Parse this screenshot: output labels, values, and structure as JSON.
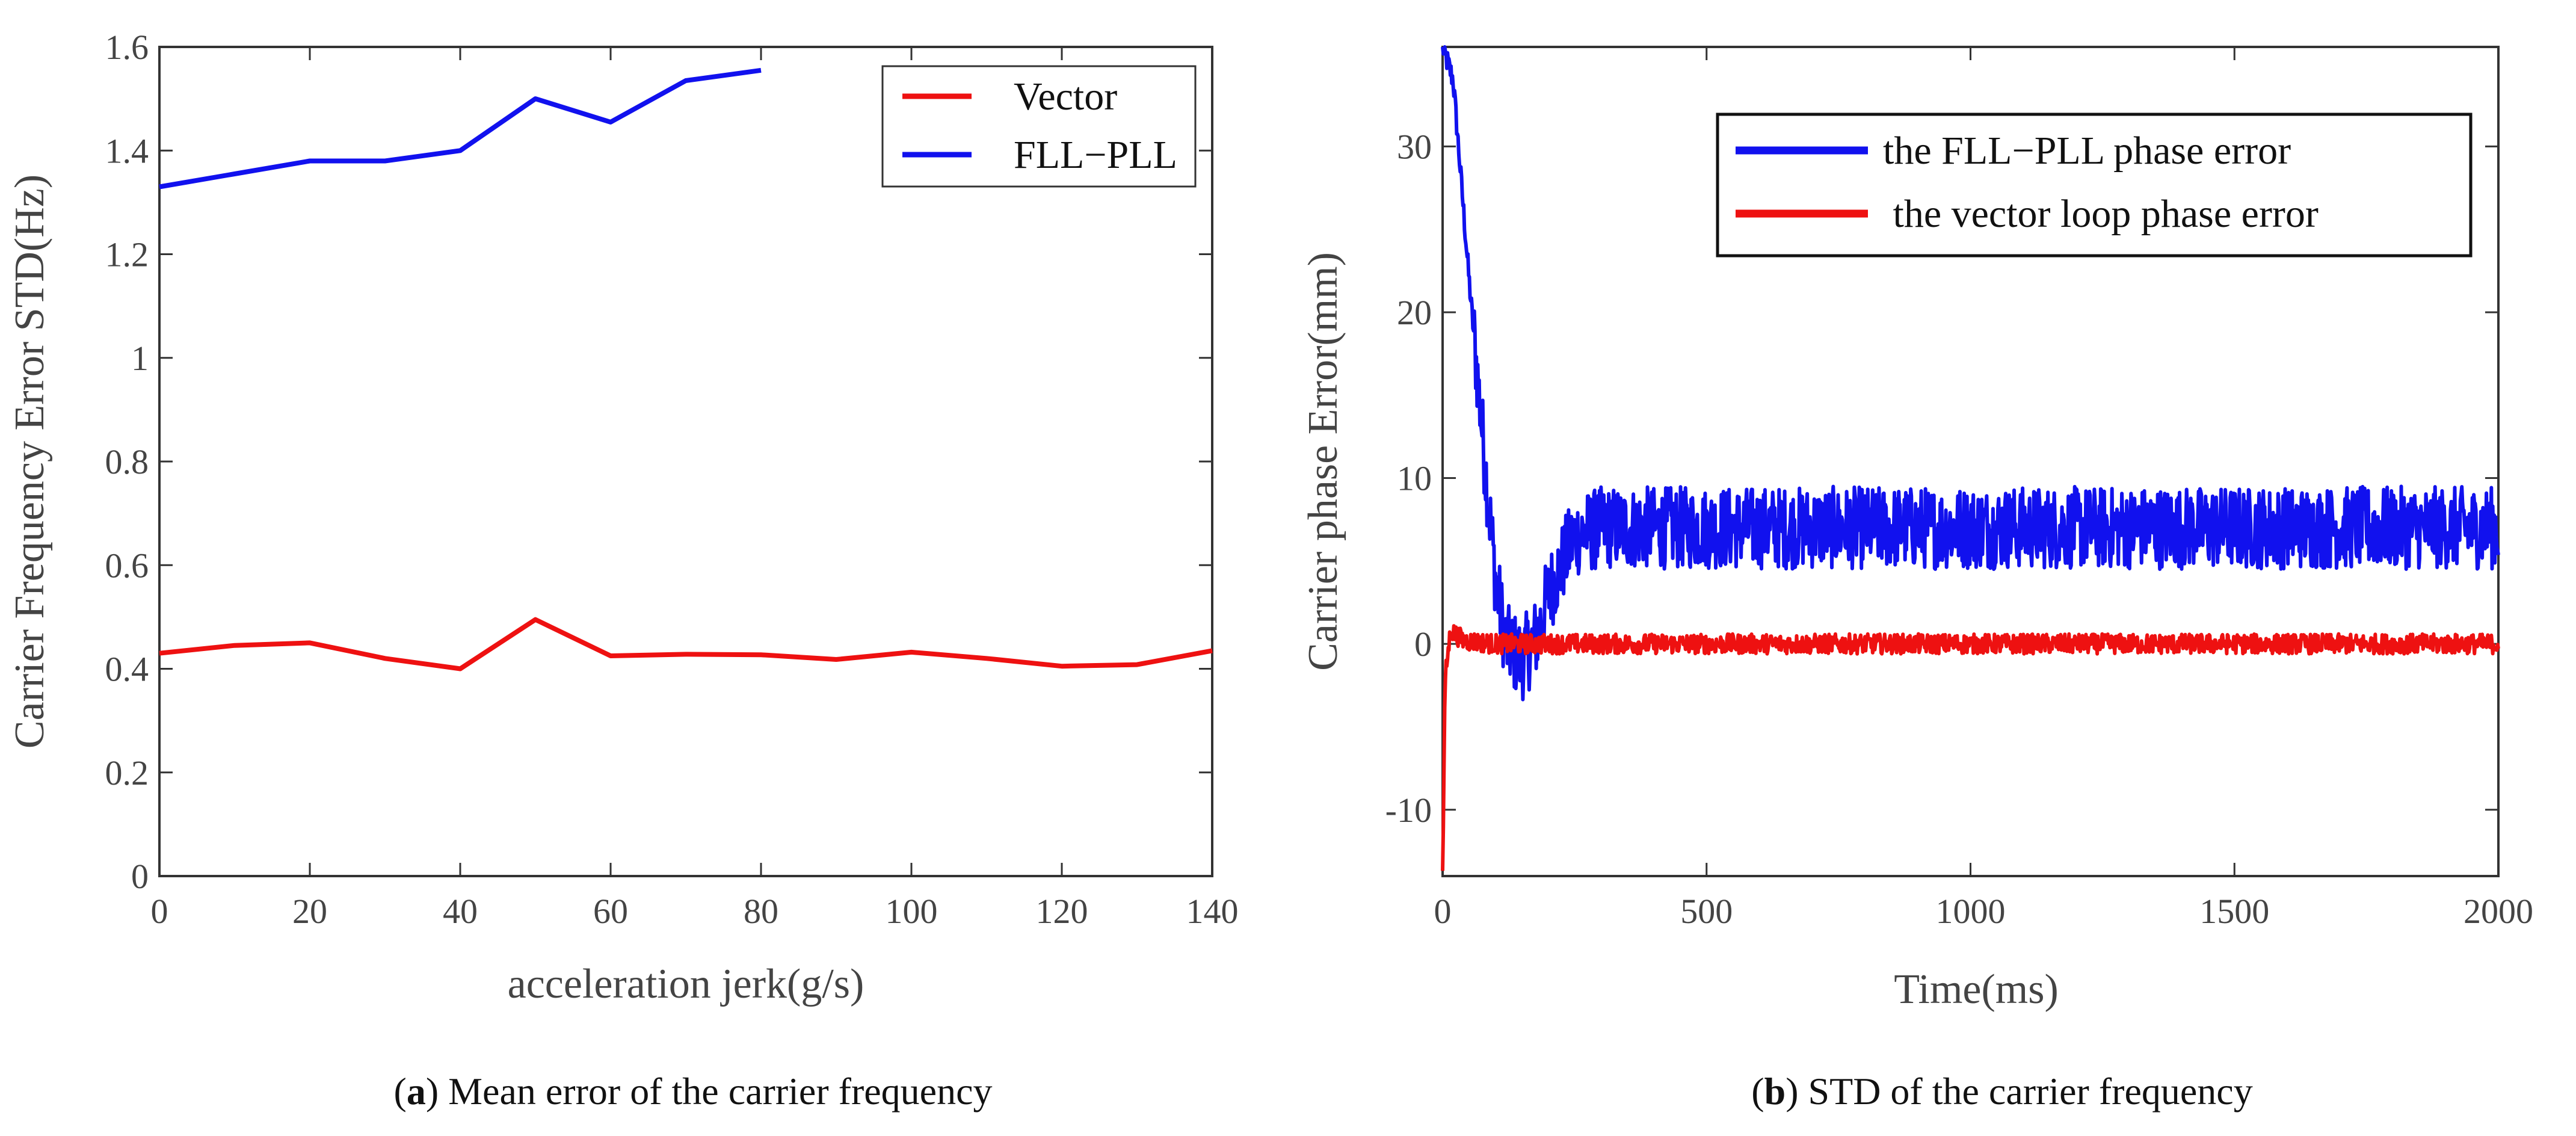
{
  "chart_data": [
    {
      "type": "line",
      "title": "",
      "xlabel": "acceleration jerk(g/s)",
      "ylabel": "Carrier Frequency Error STD(Hz)",
      "xlim": [
        0,
        140
      ],
      "ylim": [
        0,
        1.6
      ],
      "xticks": [
        "0",
        "20",
        "40",
        "60",
        "80",
        "100",
        "120",
        "140"
      ],
      "yticks": [
        "0",
        "0.2",
        "0.4",
        "0.6",
        "0.8",
        "1",
        "1.2",
        "1.4",
        "1.6"
      ],
      "legend_position": "top-right",
      "series": [
        {
          "name": "Vector",
          "color": "#ee1111",
          "x": [
            0,
            10,
            20,
            30,
            40,
            50,
            60,
            70,
            80,
            90,
            100,
            110,
            120,
            130,
            140
          ],
          "y": [
            0.43,
            0.445,
            0.45,
            0.42,
            0.4,
            0.495,
            0.425,
            0.428,
            0.427,
            0.418,
            0.432,
            0.42,
            0.405,
            0.408,
            0.435
          ]
        },
        {
          "name": "FLL−PLL",
          "color": "#1111ee",
          "x": [
            0,
            10,
            20,
            30,
            40,
            50,
            60,
            70,
            80
          ],
          "y": [
            1.33,
            1.355,
            1.38,
            1.38,
            1.4,
            1.5,
            1.455,
            1.535,
            1.555
          ]
        }
      ],
      "caption_letter": "a",
      "caption_text": "Mean error of the carrier frequency"
    },
    {
      "type": "line",
      "title": "",
      "xlabel": "Time(ms)",
      "ylabel": "Carrier  phase Error(mm)",
      "xlim": [
        0,
        2000
      ],
      "ylim": [
        -14,
        36
      ],
      "xticks": [
        "0",
        "500",
        "1000",
        "1500",
        "2000"
      ],
      "yticks": [
        "-10",
        "0",
        "10",
        "20",
        "30"
      ],
      "legend_position": "top-right",
      "series": [
        {
          "name": "the FLL−PLL phase error",
          "color": "#1111ee",
          "trend": {
            "x": [
              0,
              20,
              50,
              80,
              100,
              120,
              150,
              180,
              200,
              250,
              300,
              400,
              2000
            ],
            "y": [
              36,
              34,
              22,
              11,
              4,
              0,
              -1,
              0.5,
              3,
              6.5,
              7,
              7,
              7
            ]
          },
          "noise_amplitude": 2.5
        },
        {
          "name": " the vector loop phase error",
          "color": "#ee1111",
          "trend": {
            "x": [
              0,
              5,
              15,
              40,
              100,
              2000
            ],
            "y": [
              -14,
              -2,
              0.8,
              0.2,
              0,
              0
            ]
          },
          "noise_amplitude": 0.6
        }
      ],
      "caption_letter": "b",
      "caption_text": "STD of the carrier frequency"
    }
  ]
}
